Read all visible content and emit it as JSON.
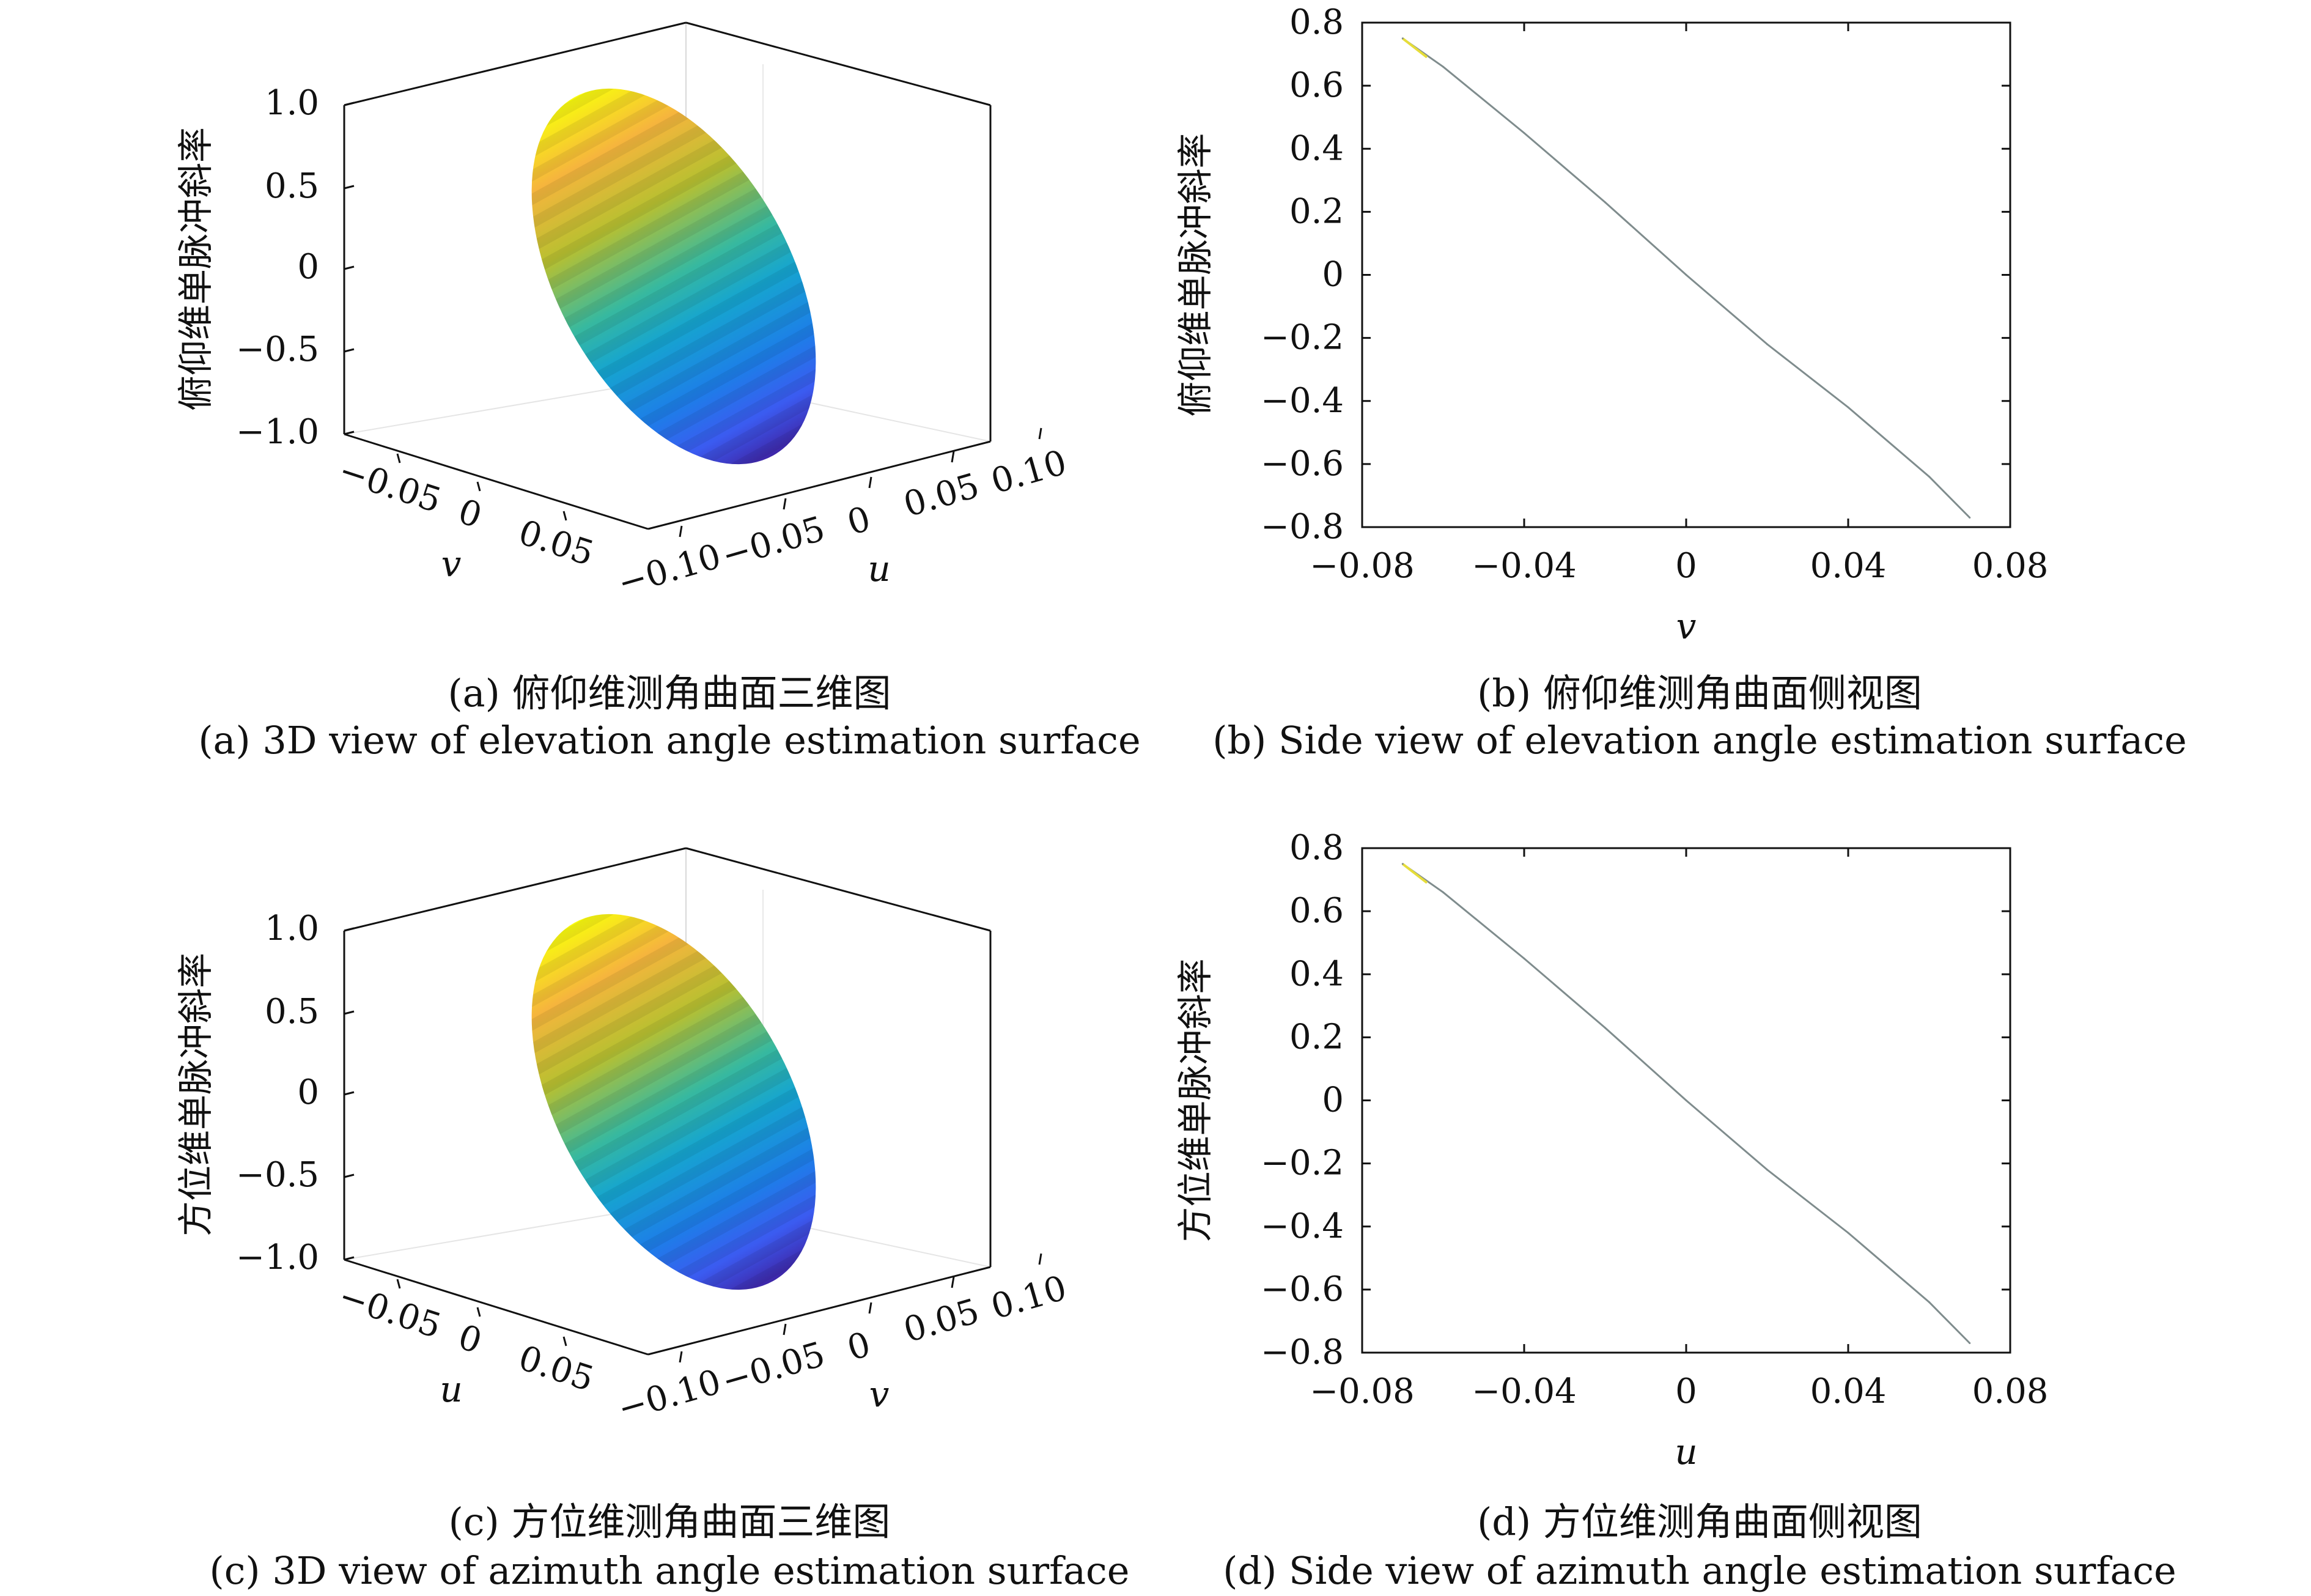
{
  "figure": {
    "panels": [
      {
        "caption_cn": "(a) 俯仰维测角曲面三维图",
        "caption_en": "(a) 3D view of elevation angle estimation surface"
      },
      {
        "caption_cn": "(b) 俯仰维测角曲面侧视图",
        "caption_en": "(b) Side view of elevation angle estimation surface"
      },
      {
        "caption_cn": "(c) 方位维测角曲面三维图",
        "caption_en": "(c) 3D view of azimuth angle estimation surface"
      },
      {
        "caption_cn": "(d) 方位维测角曲面侧视图",
        "caption_en": "(d) Side view of azimuth angle estimation surface"
      }
    ]
  },
  "chart_data": [
    {
      "type": "surface3d",
      "zlabel": "俯仰维单脉冲斜率",
      "left_axis_label": "v",
      "right_axis_label": "u",
      "z_ticks": [
        "1.0",
        "0.5",
        "0",
        "−0.5",
        "−1.0"
      ],
      "left_axis_ticks": [
        "−0.05",
        "0",
        "0.05"
      ],
      "right_axis_ticks": [
        "−0.10",
        "−0.05",
        "0",
        "0.05",
        "0.10"
      ],
      "zlim": [
        -1.0,
        1.0
      ],
      "surface": {
        "shape": "tilted ellipse",
        "colormap": "parula"
      }
    },
    {
      "type": "line",
      "xlabel": "v",
      "ylabel": "俯仰维单脉冲斜率",
      "xlim": [
        -0.08,
        0.08
      ],
      "ylim": [
        -0.8,
        0.8
      ],
      "x_ticks": [
        "−0.08",
        "−0.04",
        "0",
        "0.04",
        "0.08"
      ],
      "y_ticks": [
        "0.8",
        "0.6",
        "0.4",
        "0.2",
        "0",
        "−0.2",
        "−0.4",
        "−0.6",
        "−0.8"
      ],
      "series": [
        {
          "x": [
            -0.07,
            -0.06,
            -0.04,
            -0.02,
            0.0,
            0.02,
            0.04,
            0.06,
            0.07
          ],
          "values": [
            0.75,
            0.66,
            0.45,
            0.23,
            0.0,
            -0.22,
            -0.42,
            -0.64,
            -0.77
          ]
        }
      ]
    },
    {
      "type": "surface3d",
      "zlabel": "方位维单脉冲斜率",
      "left_axis_label": "u",
      "right_axis_label": "v",
      "z_ticks": [
        "1.0",
        "0.5",
        "0",
        "−0.5",
        "−1.0"
      ],
      "left_axis_ticks": [
        "−0.05",
        "0",
        "0.05"
      ],
      "right_axis_ticks": [
        "−0.10",
        "−0.05",
        "0",
        "0.05",
        "0.10"
      ],
      "zlim": [
        -1.0,
        1.0
      ],
      "surface": {
        "shape": "tilted ellipse",
        "colormap": "parula"
      }
    },
    {
      "type": "line",
      "xlabel": "u",
      "ylabel": "方位维单脉冲斜率",
      "xlim": [
        -0.08,
        0.08
      ],
      "ylim": [
        -0.8,
        0.8
      ],
      "x_ticks": [
        "−0.08",
        "−0.04",
        "0",
        "0.04",
        "0.08"
      ],
      "y_ticks": [
        "0.8",
        "0.6",
        "0.4",
        "0.2",
        "0",
        "−0.2",
        "−0.4",
        "−0.6",
        "−0.8"
      ],
      "series": [
        {
          "x": [
            -0.07,
            -0.06,
            -0.04,
            -0.02,
            0.0,
            0.02,
            0.04,
            0.06,
            0.07
          ],
          "values": [
            0.75,
            0.66,
            0.45,
            0.23,
            0.0,
            -0.22,
            -0.42,
            -0.64,
            -0.77
          ]
        }
      ]
    }
  ]
}
